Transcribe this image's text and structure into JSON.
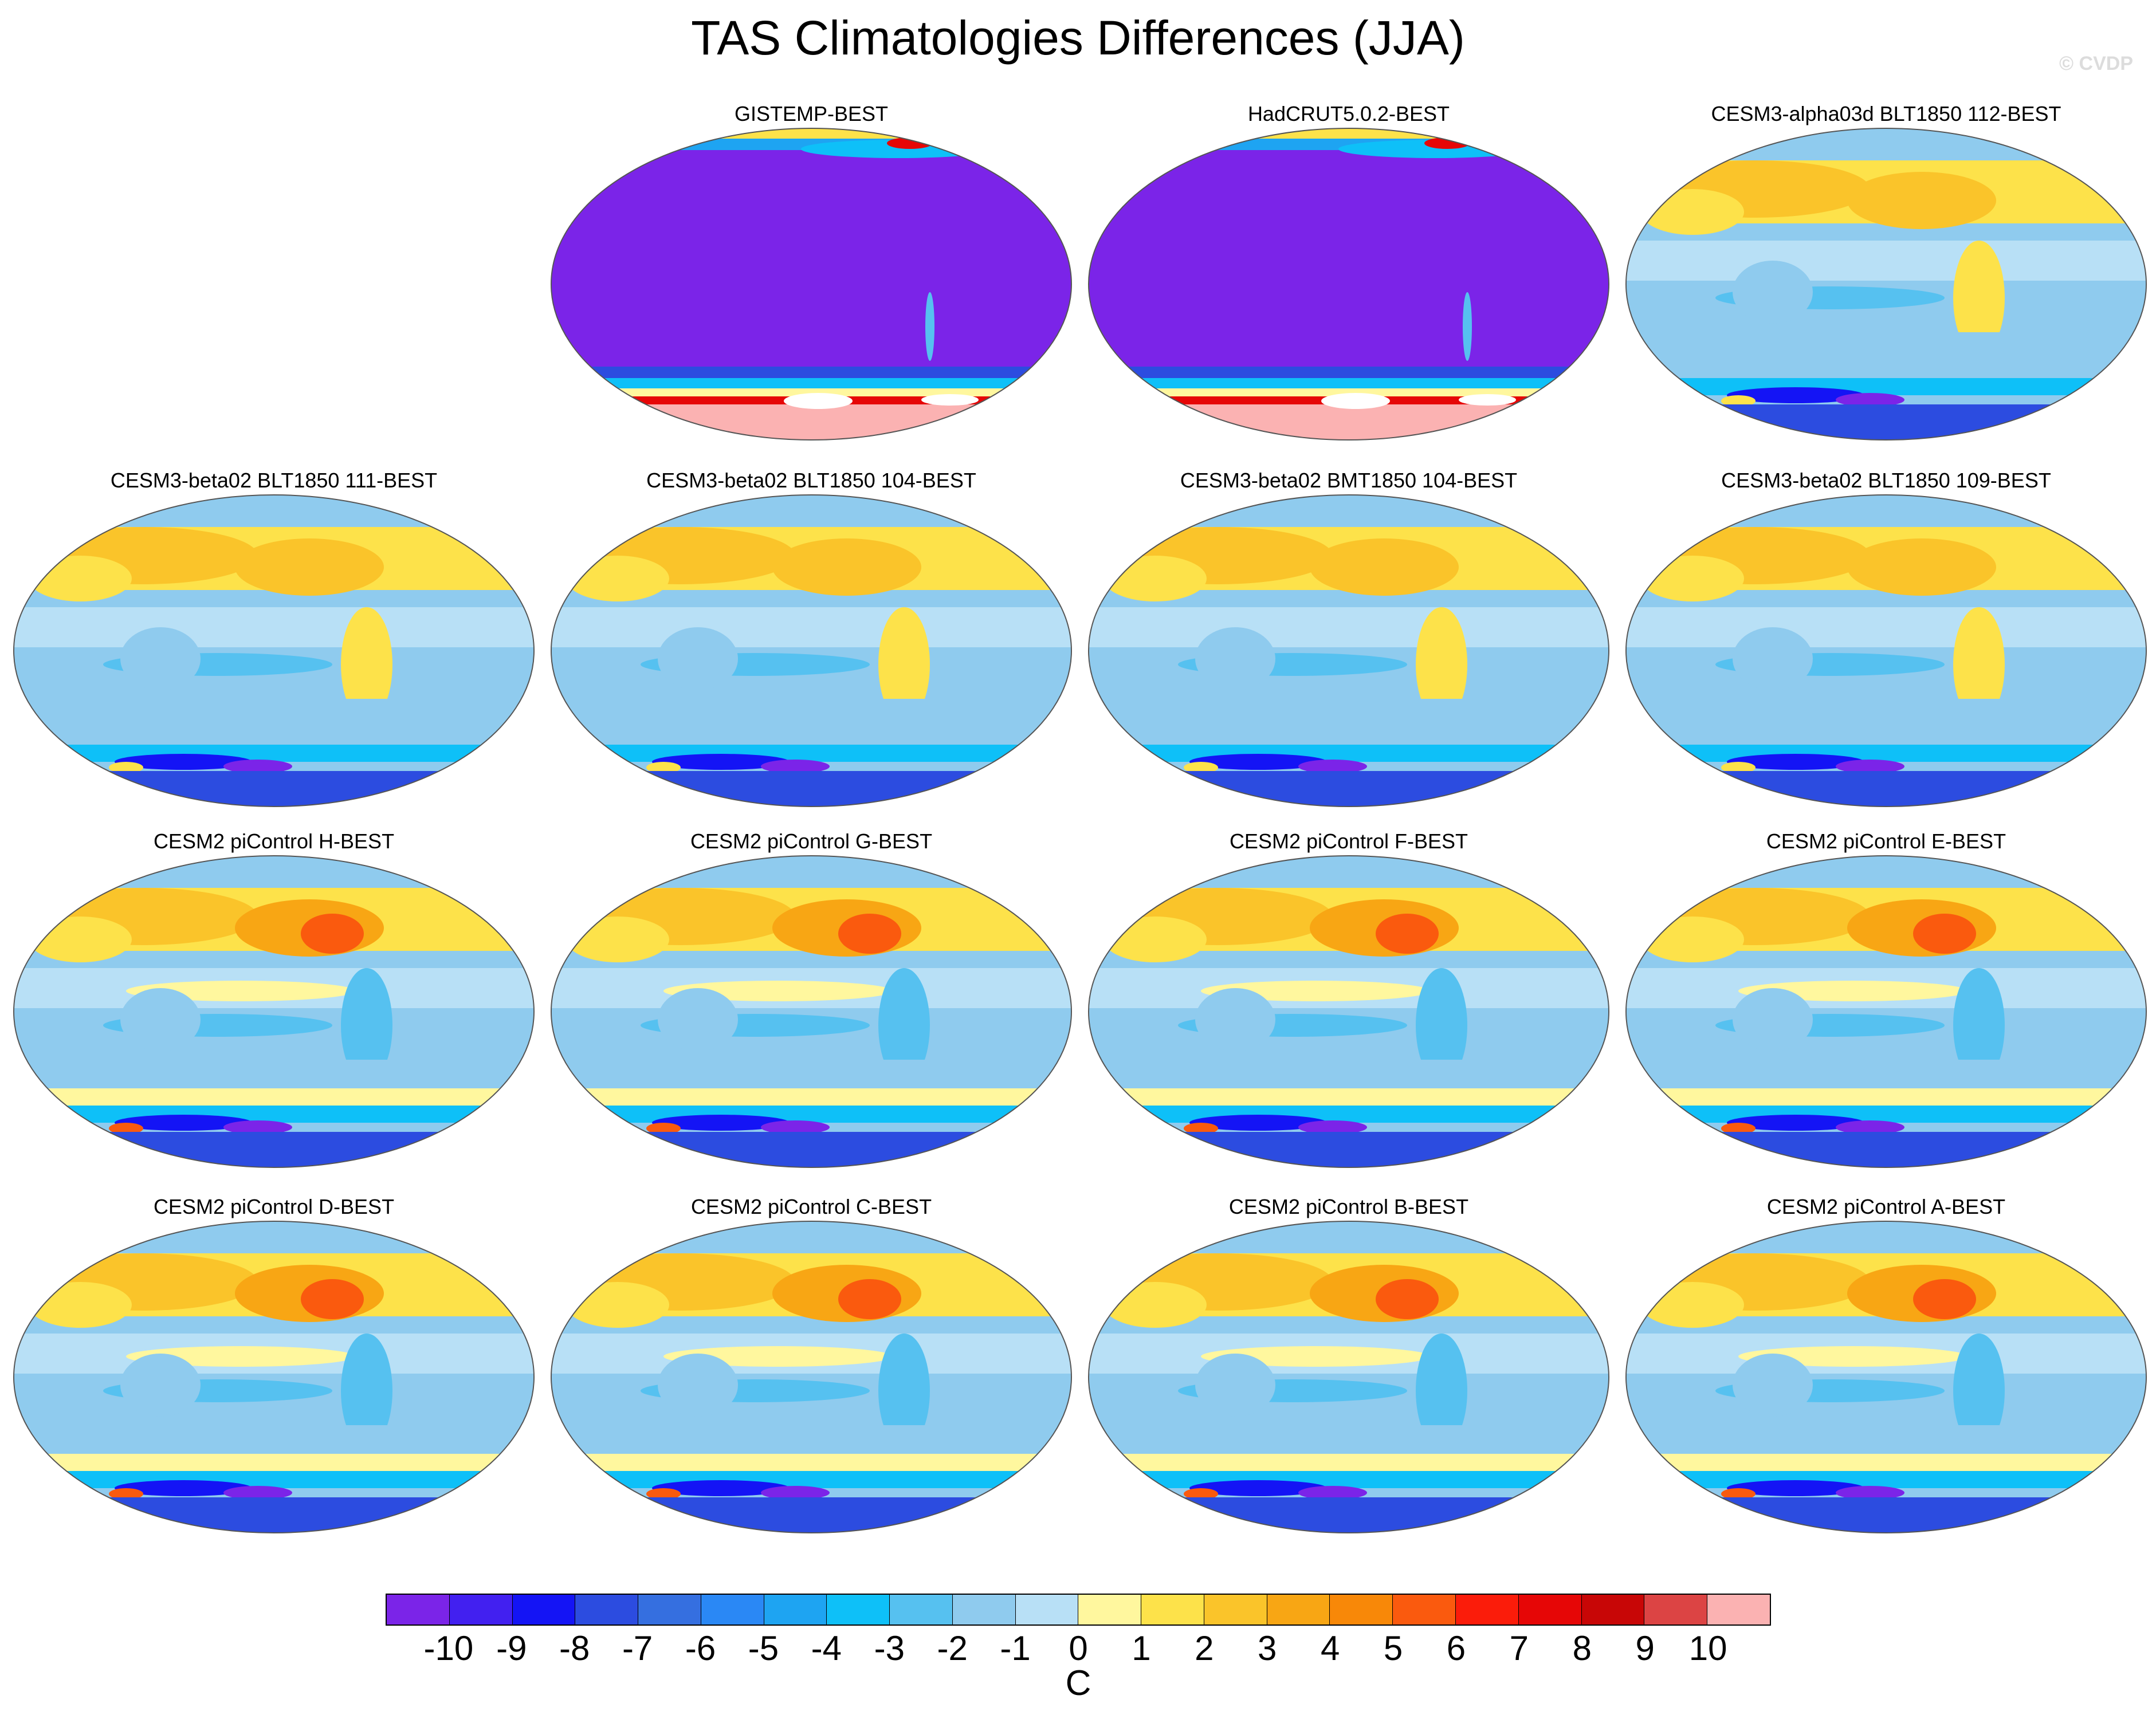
{
  "title": "TAS Climatologies Differences (JJA)",
  "watermark": "© CVDP",
  "projection": "Robinson, Pacific-centered global maps",
  "panels": [
    {
      "name": "GISTEMP-BEST",
      "style": "obs"
    },
    {
      "name": "HadCRUT5.0.2-BEST",
      "style": "obs"
    },
    {
      "name": "CESM3-alpha03d BLT1850 112-BEST",
      "style": "beta"
    },
    {
      "name": "CESM3-beta02 BLT1850 111-BEST",
      "style": "beta"
    },
    {
      "name": "CESM3-beta02 BLT1850 104-BEST",
      "style": "beta"
    },
    {
      "name": "CESM3-beta02 BMT1850 104-BEST",
      "style": "beta"
    },
    {
      "name": "CESM3-beta02 BLT1850 109-BEST",
      "style": "beta"
    },
    {
      "name": "CESM2 piControl H-BEST",
      "style": "cesm2"
    },
    {
      "name": "CESM2 piControl G-BEST",
      "style": "cesm2"
    },
    {
      "name": "CESM2 piControl F-BEST",
      "style": "cesm2"
    },
    {
      "name": "CESM2 piControl E-BEST",
      "style": "cesm2"
    },
    {
      "name": "CESM2 piControl D-BEST",
      "style": "cesm2"
    },
    {
      "name": "CESM2 piControl C-BEST",
      "style": "cesm2"
    },
    {
      "name": "CESM2 piControl B-BEST",
      "style": "cesm2"
    },
    {
      "name": "CESM2 piControl A-BEST",
      "style": "cesm2"
    }
  ],
  "colorbar": {
    "units": "C",
    "labels": [
      "-10",
      "-9",
      "-8",
      "-7",
      "-6",
      "-5",
      "-4",
      "-3",
      "-2",
      "-1",
      "0",
      "1",
      "2",
      "3",
      "4",
      "5",
      "6",
      "7",
      "8",
      "9",
      "10"
    ],
    "colors": [
      "#7b24e8",
      "#4220f0",
      "#1414f5",
      "#2c4ce0",
      "#356fe0",
      "#2a88f5",
      "#1ea4f2",
      "#0ec0f8",
      "#56c1f0",
      "#8fcbee",
      "#b8e0f6",
      "#fff79e",
      "#fde24a",
      "#fac42a",
      "#f8a614",
      "#f88808",
      "#fa5a0e",
      "#fb1c0a",
      "#e60606",
      "#c80606",
      "#dc4444",
      "#fbb2b2"
    ]
  }
}
